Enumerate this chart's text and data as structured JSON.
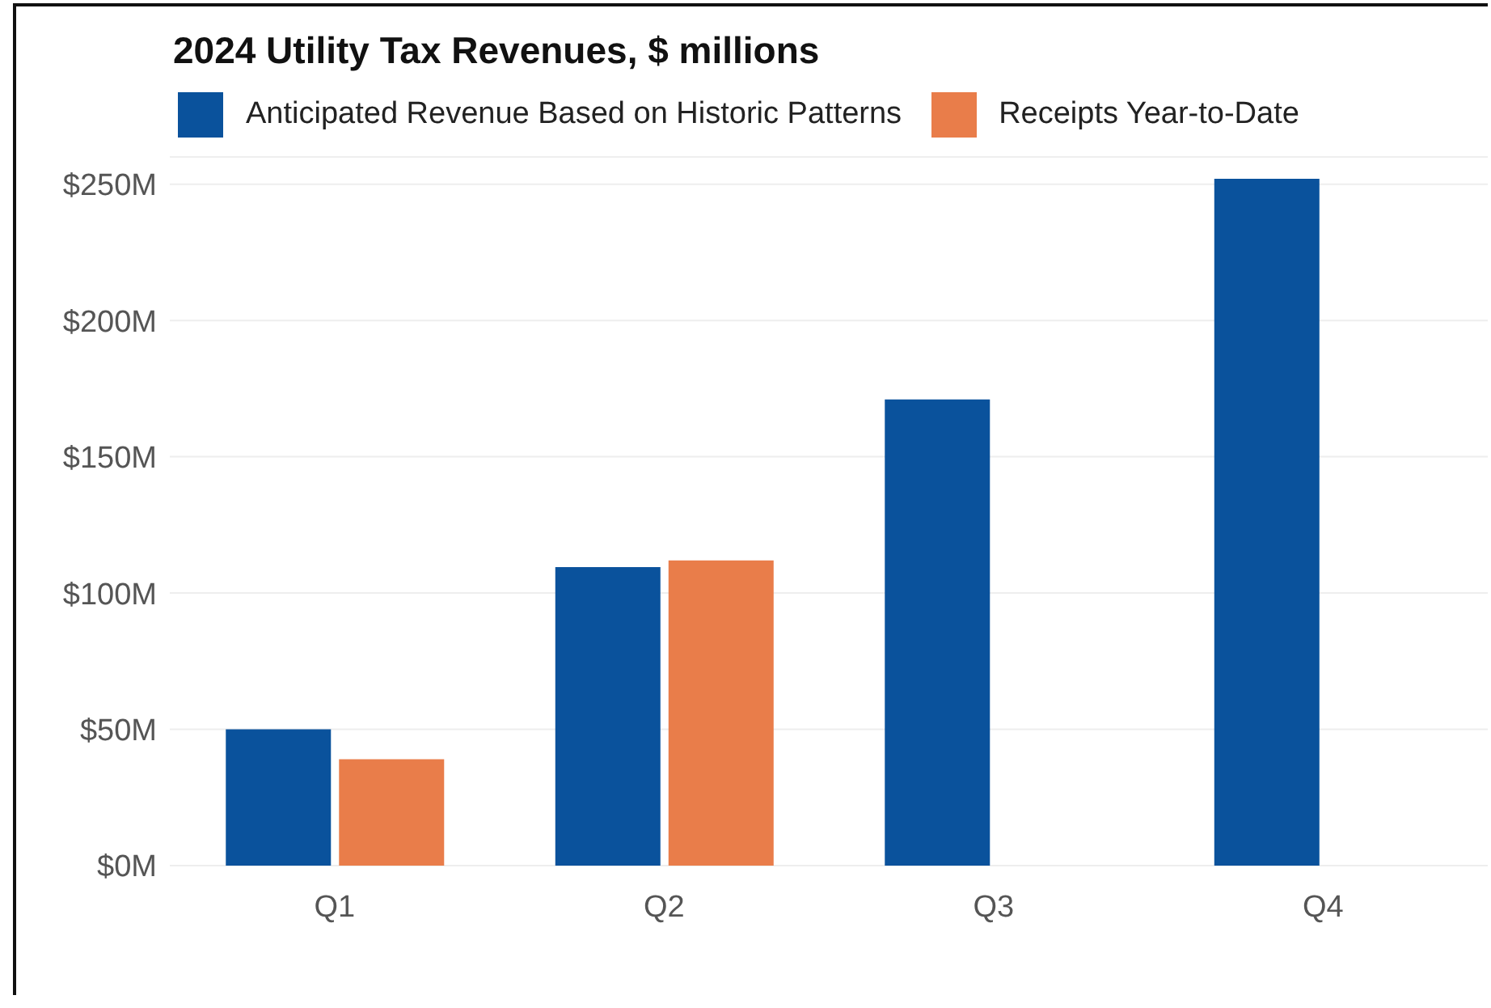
{
  "chart_data": {
    "type": "bar",
    "title": "2024 Utility Tax Revenues, $ millions",
    "categories": [
      "Q1",
      "Q2",
      "Q3",
      "Q4"
    ],
    "series": [
      {
        "name": "Anticipated Revenue Based on Historic Patterns",
        "color": "#0a529c",
        "values": [
          50,
          109.5,
          171,
          252
        ]
      },
      {
        "name": "Receipts Year-to-Date",
        "color": "#e97d4a",
        "values": [
          39,
          112,
          null,
          null
        ]
      }
    ],
    "ylim": [
      0,
      260
    ],
    "yticks": [
      {
        "value": 0,
        "label": "$0M"
      },
      {
        "value": 50,
        "label": "$50M"
      },
      {
        "value": 100,
        "label": "$100M"
      },
      {
        "value": 150,
        "label": "$150M"
      },
      {
        "value": 200,
        "label": "$200M"
      },
      {
        "value": 250,
        "label": "$250M"
      }
    ],
    "grid": "y",
    "legend": "top left"
  }
}
